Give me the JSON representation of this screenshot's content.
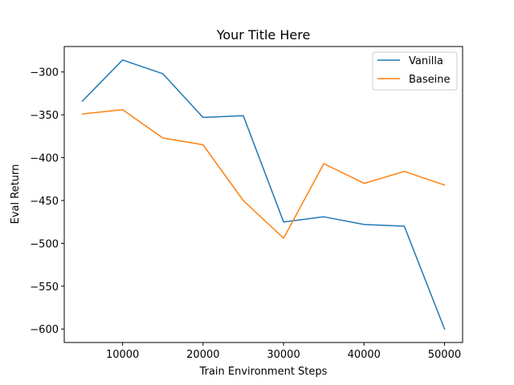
{
  "chart_data": {
    "type": "line",
    "title": "Your Title Here",
    "xlabel": "Train Environment Steps",
    "ylabel": "Eval Return",
    "x": [
      5000,
      10000,
      15000,
      20000,
      25000,
      30000,
      35000,
      40000,
      45000,
      50000
    ],
    "series": [
      {
        "name": "Vanilla",
        "color": "#1f77b4",
        "values": [
          -334,
          -286,
          -302,
          -353,
          -351,
          -475,
          -469,
          -478,
          -480,
          -600
        ]
      },
      {
        "name": "Baseine",
        "color": "#ff7f0e",
        "values": [
          -349,
          -344,
          -377,
          -385,
          -450,
          -494,
          -407,
          -430,
          -416,
          -432
        ]
      }
    ],
    "xticks": [
      10000,
      20000,
      30000,
      40000,
      50000
    ],
    "xtick_labels": [
      "10000",
      "20000",
      "30000",
      "40000",
      "50000"
    ],
    "yticks": [
      -600,
      -550,
      -500,
      -450,
      -400,
      -350,
      -300
    ],
    "ytick_labels": [
      "−600",
      "−550",
      "−500",
      "−450",
      "−400",
      "−350",
      "−300"
    ],
    "xlim": [
      2750,
      52250
    ],
    "ylim": [
      -615.7,
      -270.3
    ],
    "grid": false,
    "legend_position": "top-right"
  }
}
